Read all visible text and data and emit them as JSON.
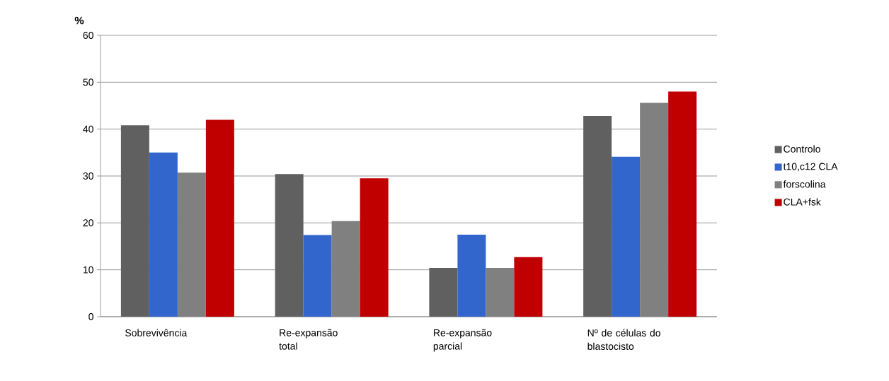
{
  "chart_data": {
    "type": "bar",
    "ylabel": "%",
    "categories": [
      "Sobrevivência",
      "Re-expansão total",
      "Re-expansão parcial",
      "Nº de células do blastocisto"
    ],
    "series": [
      {
        "name": "Controlo",
        "color": "#606060",
        "values": [
          40.8,
          30.4,
          10.4,
          42.8
        ]
      },
      {
        "name": "t10,c12 CLA",
        "color": "#3366cc",
        "values": [
          35.0,
          17.4,
          17.5,
          34.1
        ]
      },
      {
        "name": "forscolina",
        "color": "#808080",
        "values": [
          30.7,
          20.4,
          10.4,
          45.6
        ]
      },
      {
        "name": "CLA+fsk",
        "color": "#c00000",
        "values": [
          42.0,
          29.5,
          12.7,
          48.0
        ]
      }
    ],
    "ylim": [
      0,
      60
    ],
    "yticks": [
      0,
      10,
      20,
      30,
      40,
      50,
      60
    ],
    "grid": "y",
    "legend": "right"
  }
}
